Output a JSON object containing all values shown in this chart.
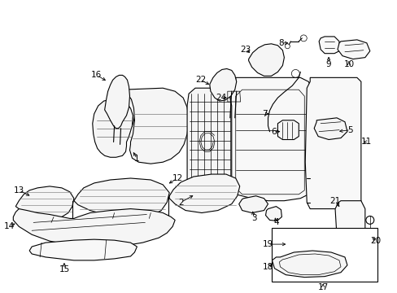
{
  "bg_color": "#ffffff",
  "line_color": "#000000",
  "fig_width": 4.89,
  "fig_height": 3.6,
  "dpi": 100,
  "lw_main": 0.8,
  "lw_thin": 0.5,
  "label_fontsize": 7.5,
  "label_color": "#000000"
}
